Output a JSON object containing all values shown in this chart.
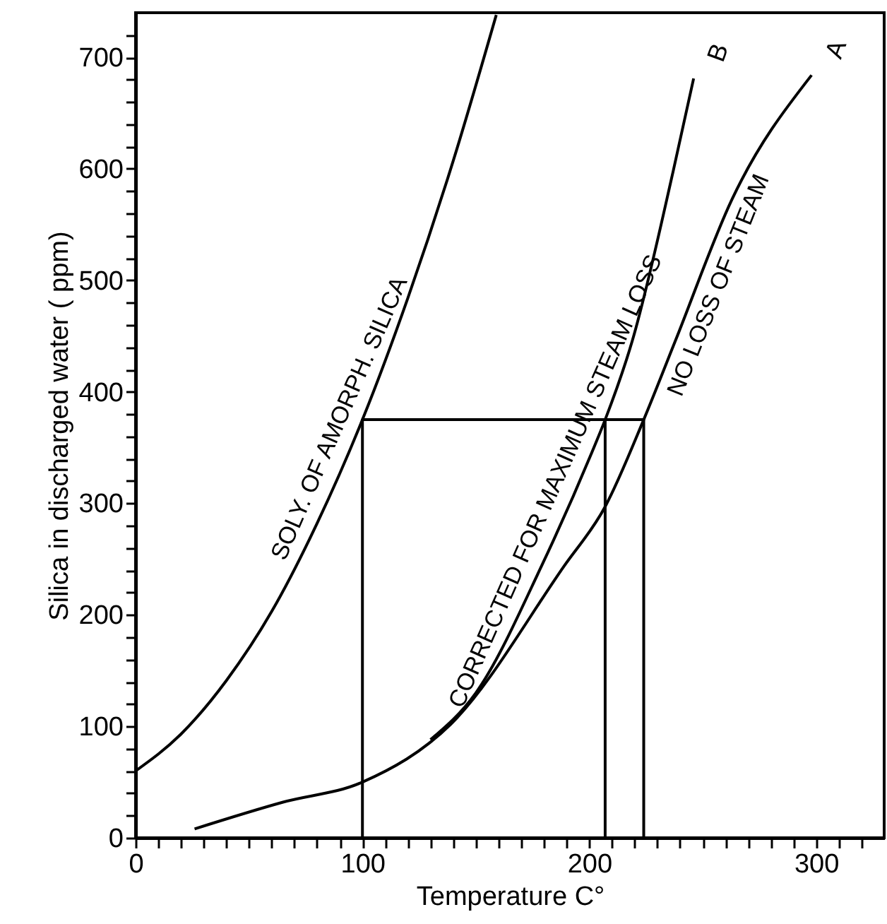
{
  "chart_data": {
    "type": "line",
    "xlabel": "Temperature  C°",
    "ylabel": "Silica  in  discharged  water  ( ppm)",
    "xlim": [
      0,
      330
    ],
    "ylim": [
      0,
      740
    ],
    "xticks": [
      0,
      {
        "value": 10,
        "label": null
      },
      {
        "value": 20,
        "label": null
      },
      {
        "value": 30,
        "label": null
      },
      {
        "value": 40,
        "label": null
      },
      {
        "value": 50,
        "label": null
      },
      {
        "value": 60,
        "label": null
      },
      {
        "value": 70,
        "label": null
      },
      {
        "value": 80,
        "label": null
      },
      {
        "value": 90,
        "label": null
      },
      100,
      {
        "value": 110,
        "label": null
      },
      {
        "value": 120,
        "label": null
      },
      {
        "value": 130,
        "label": null
      },
      {
        "value": 140,
        "label": null
      },
      {
        "value": 150,
        "label": null
      },
      {
        "value": 160,
        "label": null
      },
      {
        "value": 170,
        "label": null
      },
      {
        "value": 180,
        "label": null
      },
      {
        "value": 190,
        "label": null
      },
      200,
      {
        "value": 210,
        "label": null
      },
      {
        "value": 220,
        "label": null
      },
      {
        "value": 230,
        "label": null
      },
      {
        "value": 240,
        "label": null
      },
      {
        "value": 250,
        "label": null
      },
      {
        "value": 260,
        "label": null
      },
      {
        "value": 270,
        "label": null
      },
      {
        "value": 280,
        "label": null
      },
      {
        "value": 290,
        "label": null
      },
      300,
      {
        "value": 310,
        "label": null
      },
      {
        "value": 320,
        "label": null
      }
    ],
    "yticks": [
      0,
      {
        "value": 20,
        "label": null
      },
      {
        "value": 40,
        "label": null
      },
      {
        "value": 60,
        "label": null
      },
      {
        "value": 80,
        "label": null
      },
      100,
      {
        "value": 120,
        "label": null
      },
      {
        "value": 140,
        "label": null
      },
      {
        "value": 160,
        "label": null
      },
      {
        "value": 180,
        "label": null
      },
      200,
      {
        "value": 220,
        "label": null
      },
      {
        "value": 240,
        "label": null
      },
      {
        "value": 260,
        "label": null
      },
      {
        "value": 280,
        "label": null
      },
      300,
      {
        "value": 320,
        "label": null
      },
      {
        "value": 340,
        "label": null
      },
      {
        "value": 360,
        "label": null
      },
      {
        "value": 380,
        "label": null
      },
      400,
      {
        "value": 420,
        "label": null
      },
      {
        "value": 440,
        "label": null
      },
      {
        "value": 460,
        "label": null
      },
      {
        "value": 480,
        "label": null
      },
      500,
      {
        "value": 520,
        "label": null
      },
      {
        "value": 540,
        "label": null
      },
      {
        "value": 560,
        "label": null
      },
      {
        "value": 580,
        "label": null
      },
      600,
      {
        "value": 620,
        "label": null
      },
      {
        "value": 640,
        "label": null
      },
      {
        "value": 660,
        "label": null
      },
      {
        "value": 680,
        "label": null
      },
      700,
      {
        "value": 720,
        "label": null
      }
    ],
    "marker": "none",
    "line_style": "solid",
    "series": [
      {
        "name": "SOLY.  OF  AMORPH.  SILICA",
        "color": "#000000",
        "x": [
          0,
          20,
          40,
          60,
          80,
          100,
          120,
          140,
          159
        ],
        "values": [
          60,
          93,
          141,
          203,
          282,
          375,
          484,
          607,
          738
        ]
      },
      {
        "name": "CORRECTED  FOR  MAXIMUM  STEAM LOSS",
        "color": "#000000",
        "x": [
          130,
          150,
          179,
          201,
          207,
          219,
          237,
          246
        ],
        "values": [
          88,
          130,
          244,
          345,
          375,
          446,
          598,
          681
        ]
      },
      {
        "name": "NO  LOSS  OF  STEAM",
        "color": "#000000",
        "x": [
          26,
          65,
          100,
          139,
          189,
          207,
          224,
          238,
          263,
          298
        ],
        "values": [
          8,
          32,
          50,
          102,
          244,
          297,
          375,
          446,
          573,
          684
        ]
      },
      {
        "color": "#000000",
        "x": [
          100,
          100,
          224,
          224
        ],
        "values": [
          0,
          375,
          375,
          0
        ]
      },
      {
        "color": "#000000",
        "x": [
          207,
          207
        ],
        "values": [
          0,
          375
        ]
      }
    ],
    "annotations": [
      "B",
      "A"
    ]
  }
}
